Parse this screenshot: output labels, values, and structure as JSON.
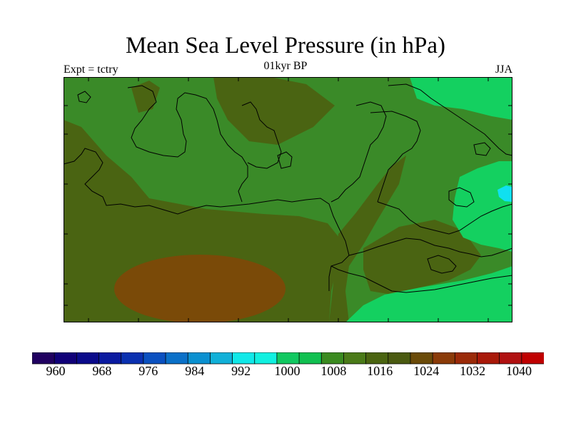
{
  "title": "Mean Sea Level Pressure (in hPa)",
  "subtitle": "01kyr BP",
  "left_label": "Expt = tctry",
  "right_label": "JJA",
  "colorbar": {
    "labels": [
      "960",
      "968",
      "976",
      "984",
      "992",
      "1000",
      "1008",
      "1016",
      "1024",
      "1032",
      "1040"
    ],
    "colors": [
      "#200060",
      "#100078",
      "#0a0a8a",
      "#0a1aa0",
      "#0a30b0",
      "#0a50c0",
      "#0a70c8",
      "#0a90d0",
      "#10b0d8",
      "#10e8e8",
      "#10f0e0",
      "#10c860",
      "#10c050",
      "#3a8a20",
      "#4a7a18",
      "#4a6410",
      "#4a5a10",
      "#6a4a08",
      "#8a3a08",
      "#9a2a08",
      "#a81808",
      "#b01010",
      "#c00000"
    ]
  },
  "map": {
    "colors": {
      "lowest": "#10e0f0",
      "low": "#14d060",
      "mid": "#3a8a28",
      "high": "#4a6412",
      "highest": "#7a4a08"
    }
  }
}
